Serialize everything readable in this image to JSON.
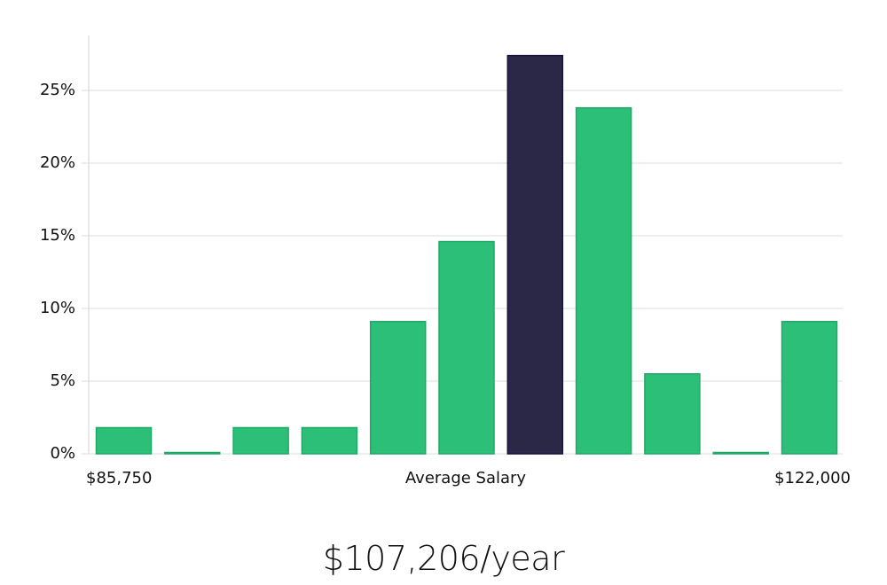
{
  "chart_data": {
    "type": "bar",
    "title": "",
    "xlabel": "Average Salary",
    "ylabel": "",
    "x_range_labels": {
      "min": "$85,750",
      "max": "$122,000"
    },
    "categories": [
      "bin1",
      "bin2",
      "bin3",
      "bin4",
      "bin5",
      "bin6",
      "bin7",
      "bin8",
      "bin9",
      "bin10",
      "bin11"
    ],
    "values": [
      1.8,
      0.0,
      1.8,
      1.8,
      9.1,
      14.6,
      27.4,
      23.8,
      5.5,
      0.0,
      9.1
    ],
    "highlight_index": 6,
    "unit": "%",
    "ylim": [
      0,
      28.7
    ],
    "yticks": [
      0,
      5,
      10,
      15,
      20,
      25
    ],
    "ytick_labels": [
      "0%",
      "5%",
      "10%",
      "15%",
      "20%",
      "25%"
    ],
    "grid": true,
    "legend": null,
    "colors": {
      "bar": "#2bbf78",
      "bar_stroke": "#22a866",
      "highlight": "#2a2747",
      "highlight_stroke": "#17143a",
      "grid": "#dddddd",
      "axis": "#d0d0d0"
    }
  },
  "labels": {
    "x_min": "$85,750",
    "x_center": "Average Salary",
    "x_max": "$122,000"
  },
  "summary": {
    "average_salary": "$107,206/year"
  }
}
